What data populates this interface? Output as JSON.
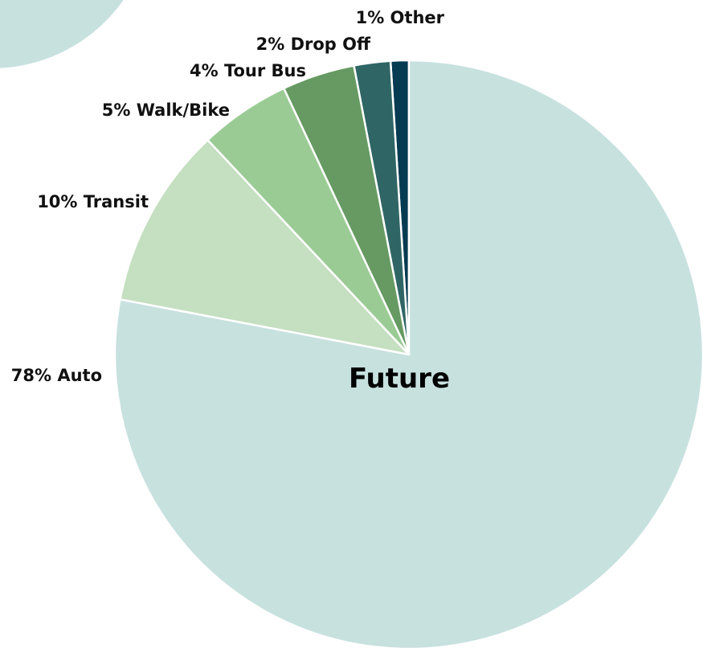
{
  "chart_data": {
    "type": "pie",
    "title": "Future",
    "slices": [
      {
        "label": "78% Auto",
        "value": 78,
        "color": "#c7e1df"
      },
      {
        "label": "10% Transit",
        "value": 10,
        "color": "#c5dfc1"
      },
      {
        "label": "5% Walk/Bike",
        "value": 5,
        "color": "#9bcb95"
      },
      {
        "label": "4% Tour Bus",
        "value": 4,
        "color": "#669a62"
      },
      {
        "label": "2% Drop Off",
        "value": 2,
        "color": "#2f6665"
      },
      {
        "label": "1% Other",
        "value": 1,
        "color": "#063b52"
      }
    ],
    "decorative_circle_color": "#c7e1df",
    "slice_border_color": "#ffffff"
  }
}
